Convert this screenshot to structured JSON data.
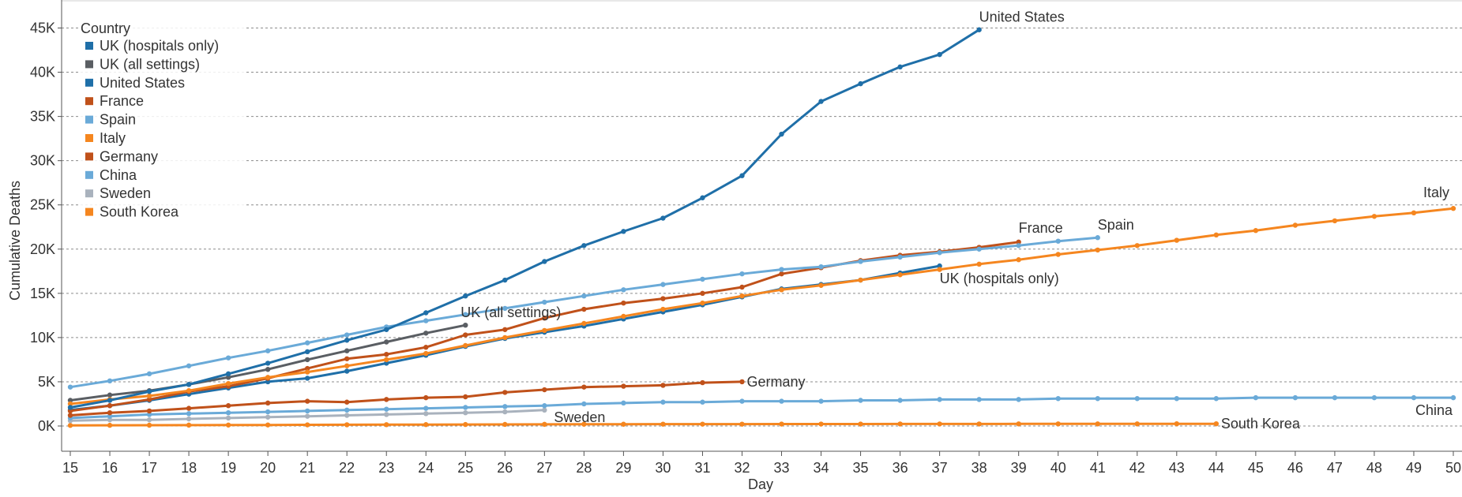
{
  "chart_data": {
    "type": "line",
    "xlabel": "Day",
    "ylabel": "Cumulative Deaths",
    "xlim": [
      15,
      50
    ],
    "ylim": [
      -2500,
      46500
    ],
    "x_ticks": [
      15,
      16,
      17,
      18,
      19,
      20,
      21,
      22,
      23,
      24,
      25,
      26,
      27,
      28,
      29,
      30,
      31,
      32,
      33,
      34,
      35,
      36,
      37,
      38,
      39,
      40,
      41,
      42,
      43,
      44,
      45,
      46,
      47,
      48,
      49,
      50
    ],
    "y_ticks": [
      0,
      5000,
      10000,
      15000,
      20000,
      25000,
      30000,
      35000,
      40000,
      45000
    ],
    "y_tick_labels": [
      "0K",
      "5K",
      "10K",
      "15K",
      "20K",
      "25K",
      "30K",
      "35K",
      "40K",
      "45K"
    ],
    "grid": "horizontal dashed",
    "legend": {
      "title": "Country",
      "position": "top-left",
      "entries": [
        {
          "label": "UK (hospitals only)",
          "color": "#1f6fa8"
        },
        {
          "label": "UK (all settings)",
          "color": "#5a5e63"
        },
        {
          "label": "United States",
          "color": "#1f6fa8"
        },
        {
          "label": "France",
          "color": "#c0511a"
        },
        {
          "label": "Spain",
          "color": "#6aaad8"
        },
        {
          "label": "Italy",
          "color": "#f5861f"
        },
        {
          "label": "Germany",
          "color": "#c0511a"
        },
        {
          "label": "China",
          "color": "#6aaad8"
        },
        {
          "label": "Sweden",
          "color": "#a9b2bd"
        },
        {
          "label": "South Korea",
          "color": "#f5861f"
        }
      ]
    },
    "series": [
      {
        "name": "United States",
        "color": "#1f6fa8",
        "x": [
          15,
          16,
          17,
          18,
          19,
          20,
          21,
          22,
          23,
          24,
          25,
          26,
          27,
          28,
          29,
          30,
          31,
          32,
          33,
          34,
          35,
          36,
          37,
          38
        ],
        "y": [
          2100,
          2900,
          3900,
          4700,
          5900,
          7100,
          8400,
          9700,
          10900,
          12800,
          14700,
          16500,
          18600,
          20400,
          22000,
          23500,
          25800,
          28300,
          33000,
          36700,
          38700,
          40600,
          42000,
          44800
        ],
        "end_label": "United States"
      },
      {
        "name": "Italy",
        "color": "#f5861f",
        "x": [
          15,
          16,
          17,
          18,
          19,
          20,
          21,
          22,
          23,
          24,
          25,
          26,
          27,
          28,
          29,
          30,
          31,
          32,
          33,
          34,
          35,
          36,
          37,
          38,
          39,
          40,
          41,
          42,
          43,
          44,
          45,
          46,
          47,
          48,
          49,
          50
        ],
        "y": [
          2500,
          3000,
          3400,
          4000,
          4800,
          5500,
          6100,
          6800,
          7500,
          8200,
          9100,
          10000,
          10800,
          11600,
          12400,
          13200,
          13900,
          14700,
          15400,
          15900,
          16500,
          17100,
          17700,
          18300,
          18800,
          19400,
          19900,
          20400,
          21000,
          21600,
          22100,
          22700,
          23200,
          23700,
          24100,
          24600
        ],
        "end_label": "Italy"
      },
      {
        "name": "Spain",
        "color": "#6aaad8",
        "x": [
          15,
          16,
          17,
          18,
          19,
          20,
          21,
          22,
          23,
          24,
          25,
          26,
          27,
          28,
          29,
          30,
          31,
          32,
          33,
          34,
          35,
          36,
          37,
          38,
          39,
          40,
          41
        ],
        "y": [
          4400,
          5100,
          5900,
          6800,
          7700,
          8500,
          9400,
          10300,
          11200,
          11900,
          12600,
          13300,
          14000,
          14700,
          15400,
          16000,
          16600,
          17200,
          17700,
          18000,
          18600,
          19100,
          19600,
          20000,
          20400,
          20900,
          21300
        ],
        "end_label": "Spain"
      },
      {
        "name": "France",
        "color": "#c0511a",
        "x": [
          15,
          16,
          17,
          18,
          19,
          20,
          21,
          22,
          23,
          24,
          25,
          26,
          27,
          28,
          29,
          30,
          31,
          32,
          33,
          34,
          35,
          36,
          37,
          38,
          39
        ],
        "y": [
          1700,
          2300,
          3000,
          3900,
          4500,
          5400,
          6500,
          7600,
          8100,
          8900,
          10300,
          10900,
          12200,
          13200,
          13900,
          14400,
          15000,
          15700,
          17200,
          17900,
          18700,
          19300,
          19700,
          20200,
          20800
        ],
        "end_label": "France"
      },
      {
        "name": "UK (hospitals only)",
        "color": "#1f6fa8",
        "x": [
          15,
          16,
          17,
          18,
          19,
          20,
          21,
          22,
          23,
          24,
          25,
          26,
          27,
          28,
          29,
          30,
          31,
          32,
          33,
          34,
          35,
          36,
          37
        ],
        "y": [
          1800,
          2300,
          2900,
          3600,
          4300,
          5000,
          5400,
          6200,
          7100,
          8000,
          9000,
          9900,
          10600,
          11300,
          12100,
          12900,
          13700,
          14600,
          15500,
          16000,
          16500,
          17300,
          18100
        ],
        "end_label": "UK (hospitals only)"
      },
      {
        "name": "UK (all settings)",
        "color": "#5a5e63",
        "x": [
          15,
          16,
          17,
          18,
          19,
          20,
          21,
          22,
          23,
          24,
          25
        ],
        "y": [
          2900,
          3500,
          4000,
          4700,
          5500,
          6400,
          7500,
          8500,
          9500,
          10500,
          11400
        ],
        "end_label": "UK (all settings)"
      },
      {
        "name": "Germany",
        "color": "#c0511a",
        "x": [
          15,
          16,
          17,
          18,
          19,
          20,
          21,
          22,
          23,
          24,
          25,
          26,
          27,
          28,
          29,
          30,
          31,
          32
        ],
        "y": [
          1200,
          1500,
          1700,
          2000,
          2300,
          2600,
          2800,
          2700,
          3000,
          3200,
          3300,
          3800,
          4100,
          4400,
          4500,
          4600,
          4900,
          5000
        ],
        "end_label": "Germany"
      },
      {
        "name": "China",
        "color": "#6aaad8",
        "x": [
          15,
          16,
          17,
          18,
          19,
          20,
          21,
          22,
          23,
          24,
          25,
          26,
          27,
          28,
          29,
          30,
          31,
          32,
          33,
          34,
          35,
          36,
          37,
          38,
          39,
          40,
          41,
          42,
          43,
          44,
          45,
          46,
          47,
          48,
          49,
          50
        ],
        "y": [
          900,
          1100,
          1300,
          1400,
          1500,
          1600,
          1700,
          1800,
          1900,
          2000,
          2100,
          2200,
          2300,
          2500,
          2600,
          2700,
          2700,
          2800,
          2800,
          2800,
          2900,
          2900,
          3000,
          3000,
          3000,
          3100,
          3100,
          3100,
          3100,
          3100,
          3200,
          3200,
          3200,
          3200,
          3200,
          3200
        ],
        "end_label": "China"
      },
      {
        "name": "Sweden",
        "color": "#a9b2bd",
        "x": [
          15,
          16,
          17,
          18,
          19,
          20,
          21,
          22,
          23,
          24,
          25,
          26,
          27
        ],
        "y": [
          600,
          700,
          700,
          800,
          900,
          1000,
          1100,
          1200,
          1300,
          1400,
          1500,
          1600,
          1800
        ],
        "end_label": "Sweden"
      },
      {
        "name": "South Korea",
        "color": "#f5861f",
        "x": [
          15,
          16,
          17,
          18,
          19,
          20,
          21,
          22,
          23,
          24,
          25,
          26,
          27,
          28,
          29,
          30,
          31,
          32,
          33,
          34,
          35,
          36,
          37,
          38,
          39,
          40,
          41,
          42,
          43,
          44
        ],
        "y": [
          70,
          80,
          90,
          100,
          110,
          120,
          130,
          140,
          150,
          160,
          170,
          180,
          190,
          200,
          200,
          210,
          210,
          210,
          220,
          220,
          220,
          230,
          230,
          230,
          240,
          240,
          240,
          240,
          250,
          250
        ],
        "end_label": "South Korea"
      }
    ]
  }
}
